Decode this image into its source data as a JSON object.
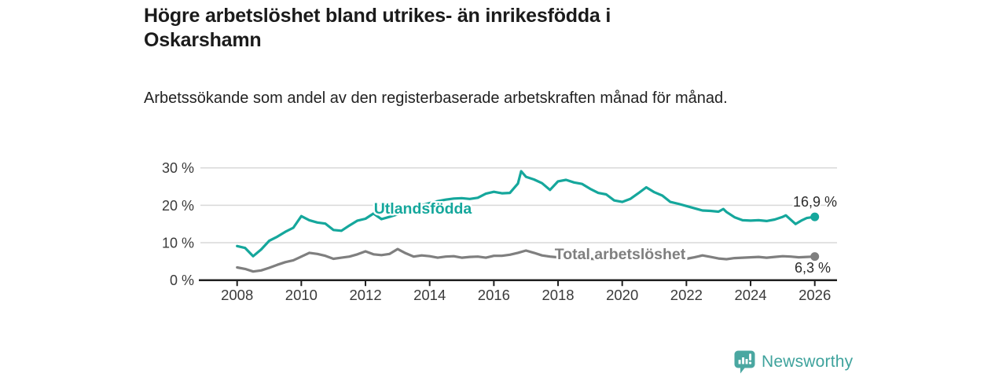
{
  "header": {
    "title": "Högre arbetslöshet bland utrikes- än inrikesfödda i Oskarshamn",
    "subtitle": "Arbetssökande som andel av den registerbaserade arbetskraften månad för månad."
  },
  "chart_data": {
    "type": "line",
    "title": "Högre arbetslöshet bland utrikes- än inrikesfödda i Oskarshamn",
    "subtitle": "Arbetssökande som andel av den registerbaserade arbetskraften månad för månad.",
    "xlabel": "",
    "ylabel": "",
    "xlim": [
      2007.75,
      2026.75
    ],
    "ylim": [
      0,
      30
    ],
    "grid": "horizontal",
    "x_ticks": [
      2008,
      2010,
      2012,
      2014,
      2016,
      2018,
      2020,
      2022,
      2024,
      2026
    ],
    "x_tick_labels": [
      "2008",
      "2010",
      "2012",
      "2014",
      "2016",
      "2018",
      "2020",
      "2022",
      "2024",
      "2026"
    ],
    "y_ticks": [
      0,
      10,
      20,
      30
    ],
    "y_tick_labels": [
      "0 %",
      "10 %",
      "20 %",
      "30 %"
    ],
    "series": [
      {
        "name": "Utlandsfödda",
        "color": "#15a79c",
        "end_label": "16,9 %",
        "end_value": 16.9,
        "x": [
          2008.0,
          2008.25,
          2008.5,
          2008.75,
          2009.0,
          2009.25,
          2009.5,
          2009.75,
          2010.0,
          2010.25,
          2010.5,
          2010.75,
          2011.0,
          2011.25,
          2011.5,
          2011.75,
          2012.0,
          2012.25,
          2012.5,
          2012.75,
          2013.0,
          2013.25,
          2013.5,
          2013.75,
          2014.0,
          2014.25,
          2014.5,
          2014.75,
          2015.0,
          2015.25,
          2015.5,
          2015.75,
          2016.0,
          2016.25,
          2016.5,
          2016.75,
          2016.85,
          2017.0,
          2017.25,
          2017.5,
          2017.75,
          2018.0,
          2018.25,
          2018.5,
          2018.75,
          2019.0,
          2019.25,
          2019.5,
          2019.75,
          2020.0,
          2020.25,
          2020.5,
          2020.75,
          2021.0,
          2021.25,
          2021.5,
          2021.75,
          2022.0,
          2022.25,
          2022.5,
          2022.75,
          2023.0,
          2023.15,
          2023.25,
          2023.5,
          2023.75,
          2024.0,
          2024.25,
          2024.5,
          2024.75,
          2025.0,
          2025.1,
          2025.4,
          2025.6,
          2025.75,
          2026.0
        ],
        "values": [
          9.1,
          8.6,
          6.4,
          8.2,
          10.5,
          11.6,
          12.9,
          14.0,
          17.1,
          16.0,
          15.4,
          15.1,
          13.4,
          13.2,
          14.6,
          15.9,
          16.4,
          17.8,
          16.3,
          16.9,
          17.6,
          18.4,
          19.3,
          20.0,
          20.6,
          21.1,
          21.5,
          21.8,
          21.9,
          21.7,
          22.0,
          23.1,
          23.6,
          23.2,
          23.3,
          25.8,
          29.1,
          27.6,
          26.9,
          25.9,
          24.1,
          26.4,
          26.8,
          26.1,
          25.7,
          24.4,
          23.3,
          22.9,
          21.3,
          20.9,
          21.7,
          23.2,
          24.8,
          23.5,
          22.6,
          20.9,
          20.4,
          19.8,
          19.2,
          18.6,
          18.5,
          18.3,
          19.0,
          18.2,
          16.8,
          16.0,
          15.9,
          16.0,
          15.8,
          16.2,
          16.9,
          17.3,
          15.0,
          16.0,
          16.6,
          16.9
        ]
      },
      {
        "name": "Total arbetslöshet",
        "color": "#7f7f7f",
        "end_label": "6,3 %",
        "end_value": 6.3,
        "x": [
          2008.0,
          2008.25,
          2008.5,
          2008.75,
          2009.0,
          2009.25,
          2009.5,
          2009.75,
          2010.0,
          2010.25,
          2010.5,
          2010.75,
          2011.0,
          2011.25,
          2011.5,
          2011.75,
          2012.0,
          2012.25,
          2012.5,
          2012.75,
          2013.0,
          2013.25,
          2013.5,
          2013.75,
          2014.0,
          2014.25,
          2014.5,
          2014.75,
          2015.0,
          2015.25,
          2015.5,
          2015.75,
          2016.0,
          2016.25,
          2016.5,
          2016.75,
          2017.0,
          2017.25,
          2017.5,
          2017.75,
          2018.0,
          2018.25,
          2018.5,
          2018.75,
          2019.0,
          2019.25,
          2019.5,
          2019.75,
          2020.0,
          2020.25,
          2020.5,
          2020.75,
          2021.0,
          2021.25,
          2021.5,
          2021.75,
          2022.0,
          2022.25,
          2022.5,
          2022.75,
          2023.0,
          2023.25,
          2023.5,
          2023.75,
          2024.0,
          2024.25,
          2024.5,
          2024.75,
          2025.0,
          2025.25,
          2025.5,
          2025.75,
          2026.0
        ],
        "values": [
          3.4,
          3.0,
          2.3,
          2.6,
          3.3,
          4.1,
          4.8,
          5.3,
          6.3,
          7.3,
          7.0,
          6.5,
          5.7,
          6.0,
          6.3,
          6.9,
          7.7,
          6.9,
          6.7,
          7.0,
          8.3,
          7.2,
          6.3,
          6.6,
          6.4,
          6.0,
          6.3,
          6.4,
          6.0,
          6.2,
          6.3,
          6.0,
          6.5,
          6.5,
          6.8,
          7.3,
          7.9,
          7.3,
          6.6,
          6.3,
          6.1,
          6.0,
          5.9,
          5.8,
          5.7,
          5.6,
          5.7,
          5.8,
          6.0,
          6.6,
          6.9,
          6.8,
          6.6,
          6.4,
          6.1,
          5.9,
          5.7,
          6.1,
          6.6,
          6.2,
          5.8,
          5.6,
          5.9,
          6.0,
          6.1,
          6.2,
          6.0,
          6.2,
          6.4,
          6.3,
          6.1,
          6.2,
          6.3
        ]
      }
    ],
    "colors": {
      "grid": "#d9d9d9",
      "axis": "#1f1f1f",
      "tick_text": "#3a3a3a",
      "end_label_text": "#2b2b2b"
    }
  },
  "branding": {
    "logo_text": "Newsworthy",
    "logo_icon": "bar-chart-speech-bubble-icon",
    "icon_color": "#4aa7a1",
    "text_color": "#3fa39d"
  }
}
